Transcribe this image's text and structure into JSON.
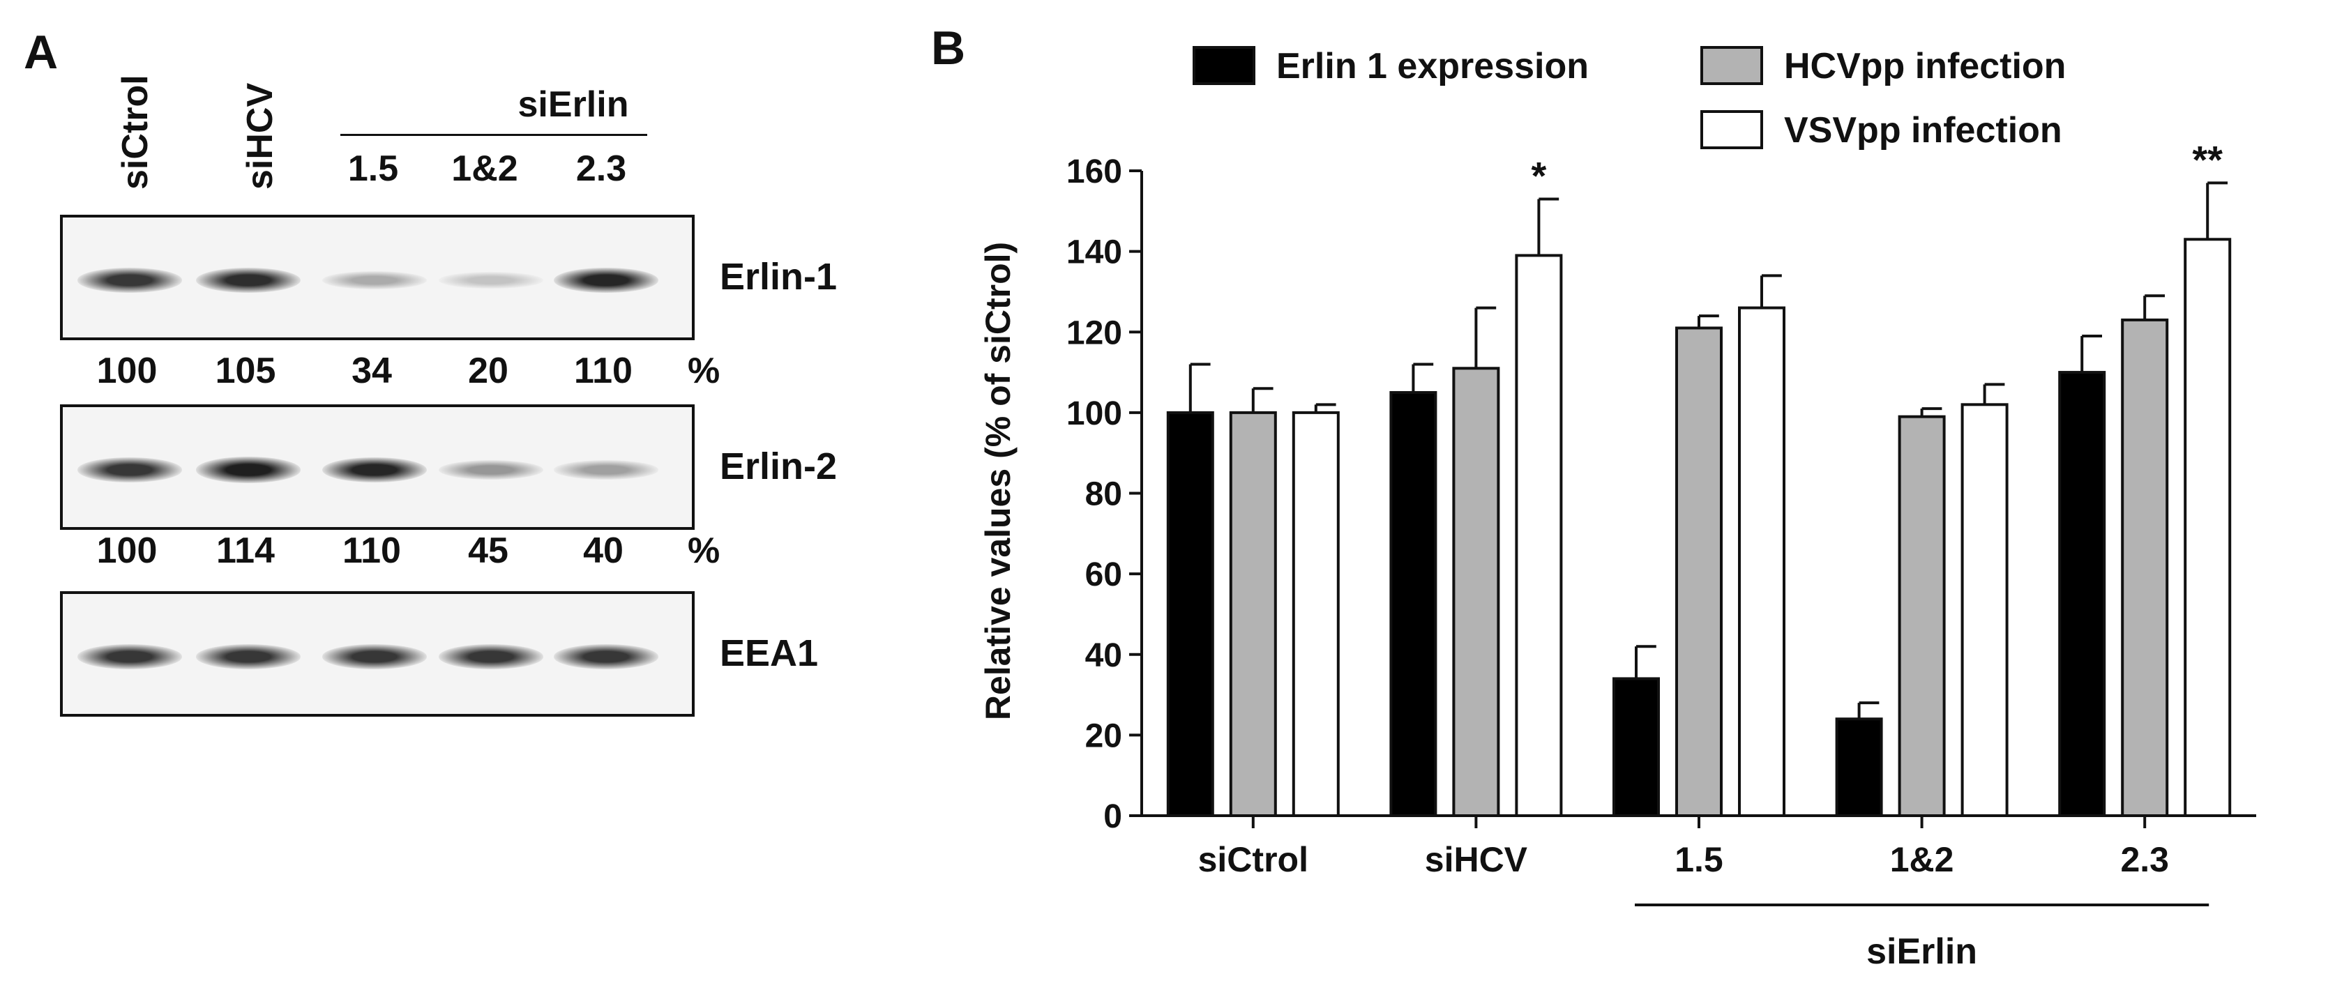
{
  "panel_a": {
    "letter": "A",
    "lanes": [
      "siCtrol",
      "siHCV"
    ],
    "group_label": "siErlin",
    "group_lanes": [
      "1.5",
      "1&2",
      "2.3"
    ],
    "blots": [
      {
        "label": "Erlin-1",
        "band_intensity": [
          100,
          105,
          34,
          20,
          110
        ]
      },
      {
        "label": "Erlin-2",
        "band_intensity": [
          100,
          114,
          110,
          45,
          40
        ]
      },
      {
        "label": "EEA1",
        "band_intensity": [
          100,
          100,
          100,
          100,
          100
        ]
      }
    ],
    "quant_rows": [
      {
        "values": [
          "100",
          "105",
          "34",
          "20",
          "110"
        ],
        "unit": "%"
      },
      {
        "values": [
          "100",
          "114",
          "110",
          "45",
          "40"
        ],
        "unit": "%"
      }
    ]
  },
  "chart_data": {
    "letter": "B",
    "type": "bar",
    "ylabel": "Relative values (% of siCtrol)",
    "ylim": [
      0,
      160
    ],
    "yticks": [
      "0",
      "20",
      "40",
      "60",
      "80",
      "100",
      "120",
      "140",
      "160"
    ],
    "categories": [
      "siCtrol",
      "siHCV",
      "1.5",
      "1&2",
      "2.3"
    ],
    "group_label": "siErlin",
    "series": [
      {
        "name": "Erlin 1 expression",
        "color": "#000000",
        "values": [
          100,
          105,
          34,
          24,
          110
        ],
        "errors": [
          12,
          7,
          8,
          4,
          9
        ]
      },
      {
        "name": "HCVpp infection",
        "color": "#b3b3b3",
        "values": [
          100,
          111,
          121,
          99,
          123
        ],
        "errors": [
          6,
          15,
          3,
          2,
          6
        ]
      },
      {
        "name": "VSVpp infection",
        "color": "#ffffff",
        "values": [
          100,
          139,
          126,
          102,
          143
        ],
        "errors": [
          2,
          14,
          8,
          5,
          14
        ]
      }
    ],
    "annotations": [
      {
        "category": "siHCV",
        "series": "VSVpp infection",
        "text": "*"
      },
      {
        "category": "2.3",
        "series": "VSVpp infection",
        "text": "**"
      }
    ],
    "legend_position": "top"
  }
}
